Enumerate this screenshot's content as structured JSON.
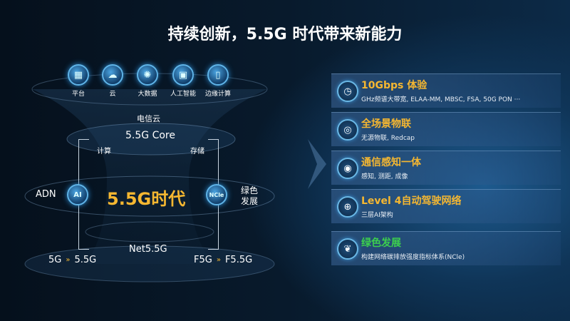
{
  "title": "持续创新，5.5G 时代带来新能力",
  "top_icons": [
    {
      "label": "平台",
      "icon": "platform-icon"
    },
    {
      "label": "云",
      "icon": "cloud-icon"
    },
    {
      "label": "大数据",
      "icon": "big-data-icon"
    },
    {
      "label": "人工智能",
      "icon": "ai-chip-icon"
    },
    {
      "label": "边缘计算",
      "icon": "edge-computing-icon"
    }
  ],
  "diagram": {
    "telecom_cloud": "电信云",
    "core": "5.5G Core",
    "compute": "计算",
    "storage": "存储",
    "adn": "ADN",
    "ai": "AI",
    "era": "5.5G时代",
    "ncle": "NCle",
    "green1": "绿色",
    "green2": "发展",
    "net": "Net5.5G",
    "left_from": "5G",
    "left_to": "5.5G",
    "right_from": "F5G",
    "right_to": "F5.5G"
  },
  "cards": [
    {
      "title": "10Gbps 体验",
      "sub": "GHz频谱大带宽, ELAA-MM, MBSC, FSA, 50G PON ···",
      "icon": "speedometer-icon",
      "color": "#f5b731"
    },
    {
      "title": "全场景物联",
      "sub": "无源物联, Redcap",
      "icon": "iot-icon",
      "color": "#f5b731"
    },
    {
      "title": "通信感知一体",
      "sub": "感知, 测距, 成像",
      "icon": "sensing-icon",
      "color": "#f5b731"
    },
    {
      "title": "Level 4自动驾驶网络",
      "sub": "三层AI架构",
      "icon": "network-globe-icon",
      "color": "#f5b731"
    },
    {
      "title": "绿色发展",
      "sub": "构建网络碳排放强度指标体系(NCle)",
      "icon": "leaf-icon",
      "color": "#3ccf4e"
    }
  ]
}
